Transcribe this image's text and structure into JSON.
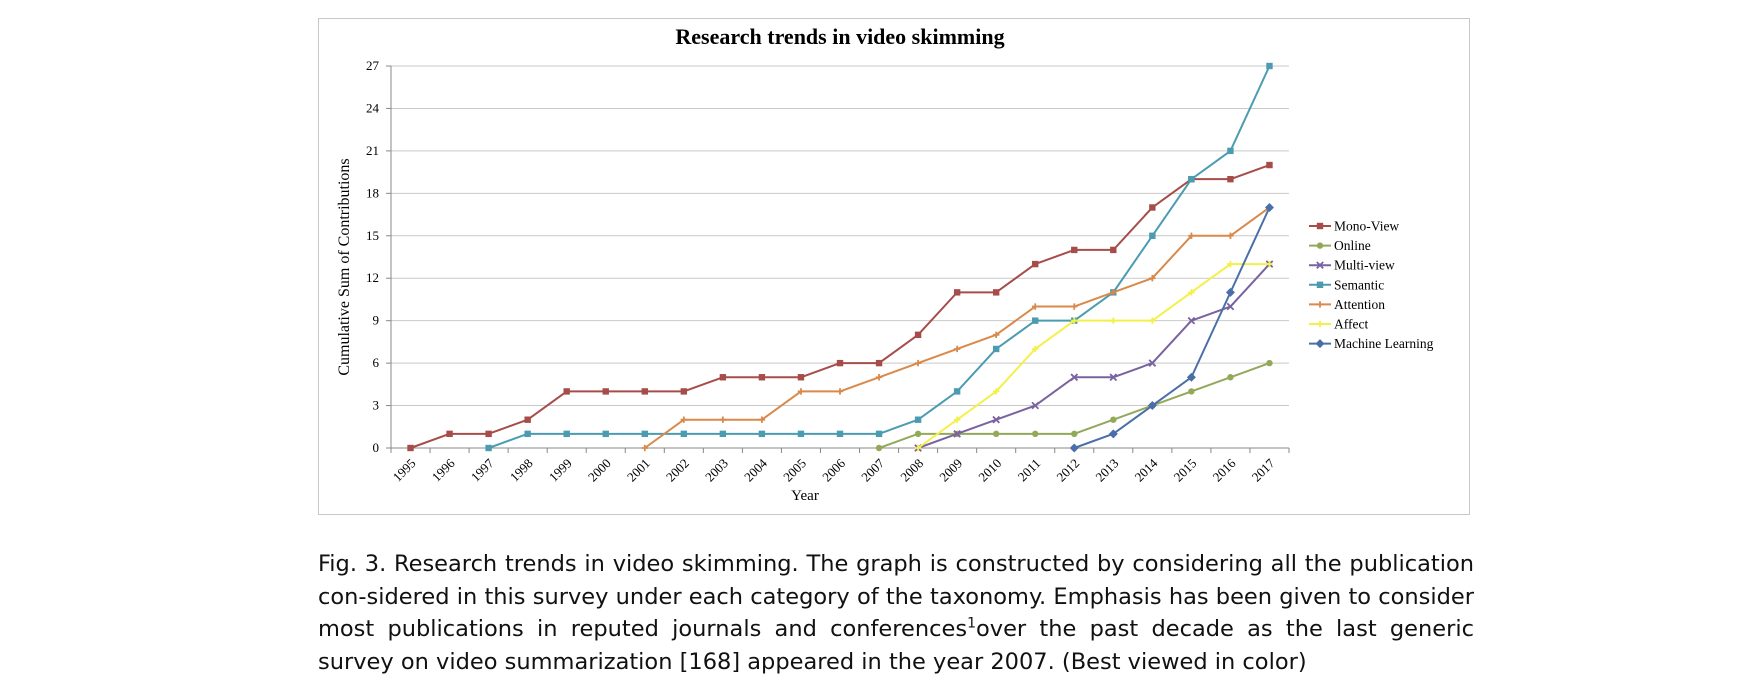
{
  "chart_data": {
    "type": "line",
    "title": "Research trends in video skimming",
    "xlabel": "Year",
    "ylabel": "Cumulative Sum  of Contributions",
    "x": [
      "1995",
      "1996",
      "1997",
      "1998",
      "1999",
      "2000",
      "2001",
      "2002",
      "2003",
      "2004",
      "2005",
      "2006",
      "2007",
      "2008",
      "2009",
      "2010",
      "2011",
      "2012",
      "2013",
      "2014",
      "2015",
      "2016",
      "2017"
    ],
    "ylim": [
      0,
      27
    ],
    "yticks": [
      "0",
      "3",
      "6",
      "9",
      "12",
      "15",
      "18",
      "21",
      "24",
      "27"
    ],
    "grid": "horizontal",
    "legend_position": "right",
    "series": [
      {
        "name": "Mono-View",
        "color": "#a64d4a",
        "marker": "square",
        "values": [
          0,
          1,
          1,
          2,
          4,
          4,
          4,
          4,
          5,
          5,
          5,
          6,
          6,
          8,
          11,
          11,
          13,
          14,
          14,
          17,
          19,
          19,
          20
        ]
      },
      {
        "name": "Online",
        "color": "#93a95a",
        "marker": "circle",
        "values": [
          null,
          null,
          null,
          null,
          null,
          null,
          null,
          null,
          null,
          null,
          null,
          null,
          0,
          1,
          1,
          1,
          1,
          1,
          2,
          3,
          4,
          5,
          6
        ]
      },
      {
        "name": "Multi-view",
        "color": "#7a62a0",
        "marker": "cross",
        "values": [
          null,
          null,
          null,
          null,
          null,
          null,
          null,
          null,
          null,
          null,
          null,
          null,
          null,
          0,
          1,
          2,
          3,
          5,
          5,
          6,
          9,
          10,
          13
        ]
      },
      {
        "name": "Semantic",
        "color": "#4b9cb0",
        "marker": "square",
        "values": [
          null,
          null,
          0,
          1,
          1,
          1,
          1,
          1,
          1,
          1,
          1,
          1,
          1,
          2,
          4,
          7,
          9,
          9,
          11,
          15,
          19,
          21,
          27
        ]
      },
      {
        "name": "Attention",
        "color": "#d9894a",
        "marker": "plus",
        "values": [
          null,
          null,
          null,
          null,
          null,
          null,
          0,
          2,
          2,
          2,
          4,
          4,
          5,
          6,
          7,
          8,
          10,
          10,
          11,
          12,
          15,
          15,
          17
        ]
      },
      {
        "name": "Affect",
        "color": "#f4f04a",
        "marker": "plus",
        "values": [
          null,
          null,
          null,
          null,
          null,
          null,
          null,
          null,
          null,
          null,
          null,
          null,
          null,
          0,
          2,
          4,
          7,
          9,
          9,
          9,
          11,
          13,
          13
        ]
      },
      {
        "name": "Machine Learning",
        "color": "#4a6fa8",
        "marker": "diamond",
        "values": [
          null,
          null,
          null,
          null,
          null,
          null,
          null,
          null,
          null,
          null,
          null,
          null,
          null,
          null,
          null,
          null,
          null,
          0,
          1,
          3,
          5,
          11,
          17
        ]
      }
    ]
  },
  "caption": {
    "part1": "Fig. 3.  Research trends in video skimming. The graph is constructed by considering all the publication con-sidered in this survey under each category of the taxonomy. Emphasis has been given to consider most publications in reputed journals and conferences",
    "sup": "1",
    "part2": "over the past decade as the last generic survey on video summarization [168] appeared in the year 2007. (Best viewed in color)"
  }
}
